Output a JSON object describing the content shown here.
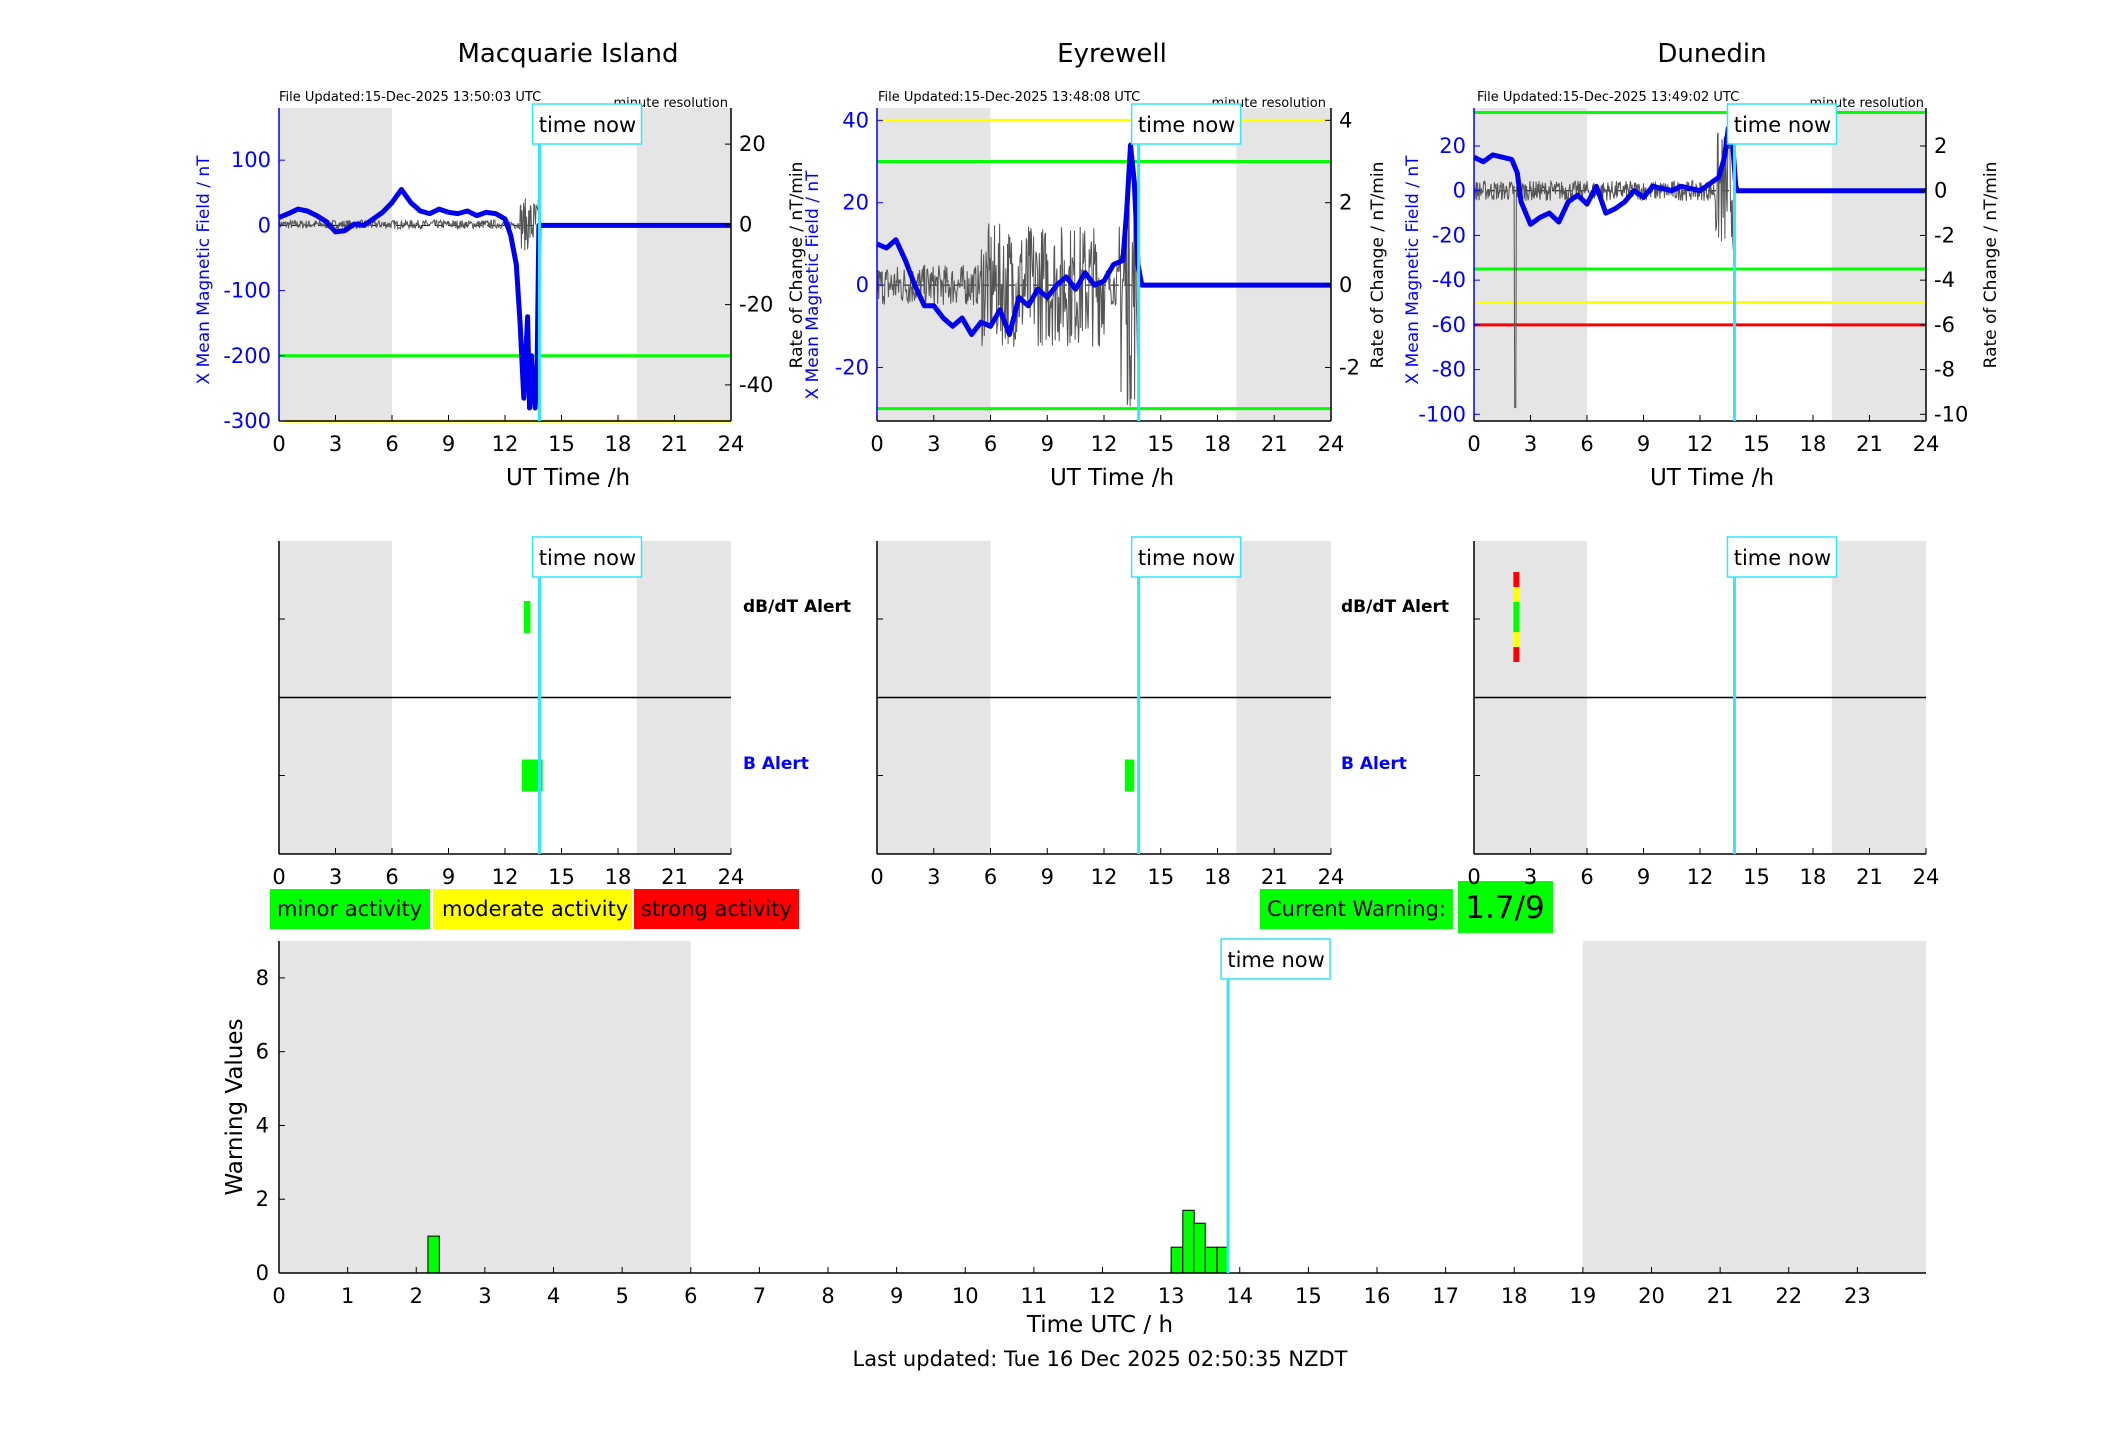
{
  "colors": {
    "field": "#0000ee",
    "rate": "#555555",
    "now_line": "#33e5ff",
    "minor": "#00ff00",
    "moderate": "#ffff00",
    "strong": "#ff0000",
    "shade": "#e5e5e5",
    "b_alert_label": "#0000ff"
  },
  "now_hour": 13.83,
  "now_label": "time now",
  "time_ticks": [
    0,
    3,
    6,
    9,
    12,
    15,
    18,
    21,
    24
  ],
  "night_shading_hours": [
    [
      0,
      6
    ],
    [
      19,
      24
    ]
  ],
  "axes": {
    "x_label": "UT Time /h",
    "left_label": "X Mean Magnetic Field / nT",
    "right_label": "Rate of Change / nT/min",
    "resolution": "minute resolution"
  },
  "alert_labels": {
    "dbdt": "dB/dT Alert",
    "b": "B Alert"
  },
  "chart_data": [
    {
      "type": "line",
      "title": "Macquarie Island",
      "file_updated": "File Updated:15-Dec-2025 13:50:03 UTC",
      "ylim_left": [
        -300,
        180
      ],
      "ylim_right": [
        -49,
        29
      ],
      "left_ticks": [
        100,
        0,
        -100,
        -200,
        -300
      ],
      "right_ticks": [
        20,
        0,
        -20,
        -40
      ],
      "thresholds": [
        {
          "value": -200,
          "color": "#00ff00"
        },
        {
          "value": -300,
          "color": "#ffff00"
        }
      ],
      "field_series": {
        "x": [
          0,
          0.5,
          1,
          1.5,
          2,
          2.5,
          3,
          3.5,
          4,
          4.5,
          5,
          5.5,
          6,
          6.5,
          7,
          7.5,
          8,
          8.5,
          9,
          9.5,
          10,
          10.5,
          11,
          11.5,
          12,
          12.3,
          12.6,
          12.8,
          13.0,
          13.1,
          13.2,
          13.3,
          13.4,
          13.5,
          13.6,
          13.7,
          13.8,
          14,
          24
        ],
        "y": [
          12,
          18,
          25,
          22,
          15,
          6,
          -10,
          -8,
          2,
          0,
          10,
          20,
          35,
          55,
          35,
          22,
          18,
          25,
          20,
          18,
          22,
          15,
          20,
          18,
          10,
          -15,
          -60,
          -150,
          -265,
          -200,
          -140,
          -280,
          -200,
          -250,
          -280,
          -230,
          0,
          0,
          0
        ]
      },
      "dbdt_alerts": [
        {
          "start": 13.0,
          "end": 13.35,
          "level": "minor"
        }
      ],
      "b_alerts": [
        {
          "start": 12.9,
          "end": 14.0,
          "level": "minor"
        }
      ]
    },
    {
      "type": "line",
      "title": "Eyrewell",
      "file_updated": "File Updated:15-Dec-2025 13:48:08 UTC",
      "ylim_left": [
        -33,
        43
      ],
      "ylim_right": [
        -3.3,
        4.3
      ],
      "left_ticks": [
        40,
        20,
        0,
        -20
      ],
      "right_ticks": [
        4,
        2,
        0,
        -2
      ],
      "thresholds": [
        {
          "value": 40,
          "color": "#ffff00"
        },
        {
          "value": 30,
          "color": "#00ff00"
        },
        {
          "value": -30,
          "color": "#00ff00"
        }
      ],
      "field_series": {
        "x": [
          0,
          0.5,
          1,
          1.5,
          2,
          2.5,
          3,
          3.5,
          4,
          4.5,
          5,
          5.5,
          6,
          6.5,
          7,
          7.5,
          8,
          8.5,
          9,
          9.5,
          10,
          10.5,
          11,
          11.5,
          12,
          12.5,
          13,
          13.2,
          13.4,
          13.6,
          13.8,
          14,
          24
        ],
        "y": [
          10,
          9,
          11,
          6,
          0,
          -5,
          -5,
          -8,
          -10,
          -8,
          -12,
          -9,
          -10,
          -6,
          -12,
          -3,
          -5,
          -1,
          -3,
          0,
          2,
          -1,
          3,
          0,
          1,
          5,
          6,
          18,
          34,
          25,
          5,
          0,
          0
        ]
      },
      "dbdt_alerts": [],
      "b_alerts": [
        {
          "start": 13.1,
          "end": 13.6,
          "level": "minor"
        }
      ]
    },
    {
      "type": "line",
      "title": "Dunedin",
      "file_updated": "File Updated:15-Dec-2025 13:49:02 UTC",
      "ylim_left": [
        -103,
        37
      ],
      "ylim_right": [
        -10.3,
        3.7
      ],
      "left_ticks": [
        20,
        0,
        -20,
        -40,
        -60,
        -80,
        -100
      ],
      "right_ticks": [
        2,
        0,
        -2,
        -4,
        -6,
        -8,
        -10
      ],
      "thresholds": [
        {
          "value": 35,
          "color": "#00ff00"
        },
        {
          "value": -35,
          "color": "#00ff00"
        },
        {
          "value": -50,
          "color": "#ffff00"
        },
        {
          "value": -60,
          "color": "#ff0000"
        }
      ],
      "field_series": {
        "x": [
          0,
          0.5,
          1,
          1.5,
          2,
          2.3,
          2.5,
          3,
          3.5,
          4,
          4.5,
          5,
          5.5,
          6,
          6.5,
          7,
          7.5,
          8,
          8.5,
          9,
          9.5,
          10,
          10.5,
          11,
          11.5,
          12,
          12.5,
          13,
          13.3,
          13.5,
          13.7,
          13.9,
          14,
          24
        ],
        "y": [
          15,
          13,
          16,
          15,
          14,
          8,
          -5,
          -15,
          -12,
          -10,
          -14,
          -5,
          -2,
          -6,
          2,
          -10,
          -8,
          -5,
          0,
          -3,
          2,
          1,
          0,
          2,
          1,
          0,
          3,
          6,
          15,
          28,
          25,
          2,
          0,
          0
        ]
      },
      "dbdt_alerts": [
        {
          "start": 2.0,
          "end": 2.5,
          "levels_bottom_to_top": [
            "strong",
            "moderate",
            "minor",
            "minor",
            "moderate",
            "strong"
          ]
        }
      ],
      "b_alerts": []
    },
    {
      "type": "bar",
      "xlabel": "Time UTC / h",
      "ylabel": "Warning Values",
      "xlim": [
        0,
        24
      ],
      "ylim": [
        0,
        9
      ],
      "x_ticks": [
        0,
        1,
        2,
        3,
        4,
        5,
        6,
        7,
        8,
        9,
        10,
        11,
        12,
        13,
        14,
        15,
        16,
        17,
        18,
        19,
        20,
        21,
        22,
        23
      ],
      "y_ticks": [
        0,
        2,
        4,
        6,
        8
      ],
      "night_shading_hours": [
        [
          0,
          6
        ],
        [
          19,
          24
        ]
      ],
      "bar_width_h": 0.1667,
      "bars": [
        {
          "x": 2.17,
          "value": 1.0
        },
        {
          "x": 13.0,
          "value": 0.7
        },
        {
          "x": 13.17,
          "value": 1.7
        },
        {
          "x": 13.33,
          "value": 1.35
        },
        {
          "x": 13.5,
          "value": 0.7
        },
        {
          "x": 13.67,
          "value": 0.7
        }
      ]
    }
  ],
  "legend": {
    "minor": "minor activity",
    "moderate": "moderate activity",
    "strong": "strong activity"
  },
  "current_warning": {
    "label": "Current Warning:",
    "value": "1.7/9"
  },
  "last_updated": "Last updated: Tue 16 Dec 2025 02:50:35 NZDT"
}
